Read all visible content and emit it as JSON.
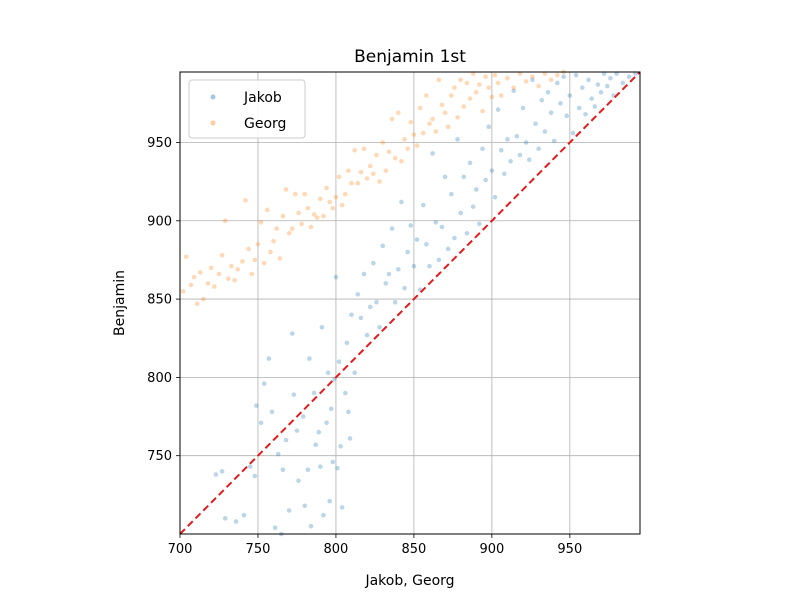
{
  "chart_data": {
    "type": "scatter",
    "title": "Benjamin 1st",
    "xlabel": "Jakob, Georg",
    "ylabel": "Benjamin",
    "xlim": [
      700,
      995
    ],
    "ylim": [
      700,
      995
    ],
    "xticks": [
      700,
      750,
      800,
      850,
      900,
      950
    ],
    "yticks": [
      750,
      800,
      850,
      900,
      950
    ],
    "grid": true,
    "legend_position": "upper-left",
    "reference_line": {
      "from": [
        700,
        700
      ],
      "to": [
        995,
        995
      ],
      "color": "#e31a1c",
      "style": "dashed"
    },
    "series": [
      {
        "name": "Jakob",
        "color": "#1f77b4",
        "points": [
          [
            723,
            738
          ],
          [
            727,
            740
          ],
          [
            729,
            710
          ],
          [
            736,
            708
          ],
          [
            741,
            712
          ],
          [
            745,
            743
          ],
          [
            748,
            737
          ],
          [
            749,
            782
          ],
          [
            752,
            771
          ],
          [
            754,
            796
          ],
          [
            757,
            812
          ],
          [
            759,
            778
          ],
          [
            761,
            704
          ],
          [
            763,
            751
          ],
          [
            765,
            700
          ],
          [
            766,
            741
          ],
          [
            768,
            760
          ],
          [
            770,
            715
          ],
          [
            772,
            828
          ],
          [
            773,
            789
          ],
          [
            775,
            766
          ],
          [
            776,
            734
          ],
          [
            779,
            775
          ],
          [
            780,
            718
          ],
          [
            782,
            741
          ],
          [
            783,
            812
          ],
          [
            784,
            705
          ],
          [
            786,
            790
          ],
          [
            787,
            757
          ],
          [
            789,
            765
          ],
          [
            790,
            743
          ],
          [
            791,
            832
          ],
          [
            792,
            712
          ],
          [
            794,
            771
          ],
          [
            795,
            803
          ],
          [
            796,
            721
          ],
          [
            797,
            780
          ],
          [
            798,
            746
          ],
          [
            799,
            799
          ],
          [
            800,
            864
          ],
          [
            801,
            742
          ],
          [
            802,
            810
          ],
          [
            803,
            756
          ],
          [
            804,
            717
          ],
          [
            806,
            790
          ],
          [
            807,
            822
          ],
          [
            808,
            778
          ],
          [
            809,
            761
          ],
          [
            810,
            840
          ],
          [
            812,
            803
          ],
          [
            814,
            853
          ],
          [
            816,
            838
          ],
          [
            818,
            866
          ],
          [
            820,
            827
          ],
          [
            822,
            845
          ],
          [
            824,
            873
          ],
          [
            826,
            848
          ],
          [
            828,
            832
          ],
          [
            830,
            884
          ],
          [
            832,
            860
          ],
          [
            834,
            866
          ],
          [
            836,
            895
          ],
          [
            838,
            848
          ],
          [
            840,
            869
          ],
          [
            842,
            912
          ],
          [
            844,
            857
          ],
          [
            846,
            880
          ],
          [
            848,
            897
          ],
          [
            850,
            871
          ],
          [
            852,
            888
          ],
          [
            854,
            856
          ],
          [
            856,
            910
          ],
          [
            858,
            885
          ],
          [
            860,
            871
          ],
          [
            862,
            943
          ],
          [
            864,
            899
          ],
          [
            866,
            875
          ],
          [
            868,
            896
          ],
          [
            870,
            928
          ],
          [
            872,
            882
          ],
          [
            874,
            917
          ],
          [
            876,
            889
          ],
          [
            878,
            952
          ],
          [
            880,
            905
          ],
          [
            882,
            928
          ],
          [
            884,
            892
          ],
          [
            886,
            937
          ],
          [
            888,
            909
          ],
          [
            890,
            920
          ],
          [
            892,
            898
          ],
          [
            894,
            946
          ],
          [
            896,
            926
          ],
          [
            898,
            960
          ],
          [
            900,
            932
          ],
          [
            902,
            915
          ],
          [
            904,
            971
          ],
          [
            906,
            945
          ],
          [
            908,
            930
          ],
          [
            910,
            952
          ],
          [
            912,
            938
          ],
          [
            914,
            983
          ],
          [
            916,
            954
          ],
          [
            918,
            942
          ],
          [
            920,
            972
          ],
          [
            922,
            950
          ],
          [
            924,
            939
          ],
          [
            926,
            990
          ],
          [
            928,
            962
          ],
          [
            930,
            946
          ],
          [
            932,
            977
          ],
          [
            934,
            957
          ],
          [
            936,
            982
          ],
          [
            938,
            969
          ],
          [
            940,
            951
          ],
          [
            942,
            988
          ],
          [
            944,
            975
          ],
          [
            946,
            992
          ],
          [
            948,
            967
          ],
          [
            950,
            980
          ],
          [
            952,
            956
          ],
          [
            954,
            993
          ],
          [
            956,
            972
          ],
          [
            958,
            985
          ],
          [
            960,
            968
          ],
          [
            962,
            990
          ],
          [
            964,
            978
          ],
          [
            966,
            973
          ],
          [
            968,
            987
          ],
          [
            970,
            982
          ],
          [
            972,
            994
          ],
          [
            974,
            986
          ],
          [
            976,
            991
          ],
          [
            978,
            980
          ],
          [
            980,
            994
          ],
          [
            984,
            988
          ],
          [
            988,
            992
          ],
          [
            992,
            994
          ]
        ]
      },
      {
        "name": "Georg",
        "color": "#ff7f0e",
        "points": [
          [
            702,
            855
          ],
          [
            704,
            877
          ],
          [
            707,
            859
          ],
          [
            709,
            864
          ],
          [
            711,
            847
          ],
          [
            713,
            867
          ],
          [
            715,
            850
          ],
          [
            718,
            860
          ],
          [
            720,
            870
          ],
          [
            722,
            858
          ],
          [
            725,
            866
          ],
          [
            727,
            878
          ],
          [
            729,
            900
          ],
          [
            731,
            863
          ],
          [
            733,
            871
          ],
          [
            735,
            862
          ],
          [
            737,
            869
          ],
          [
            740,
            874
          ],
          [
            742,
            913
          ],
          [
            744,
            882
          ],
          [
            746,
            866
          ],
          [
            748,
            875
          ],
          [
            750,
            885
          ],
          [
            752,
            899
          ],
          [
            754,
            873
          ],
          [
            756,
            907
          ],
          [
            758,
            880
          ],
          [
            760,
            887
          ],
          [
            762,
            895
          ],
          [
            764,
            876
          ],
          [
            766,
            903
          ],
          [
            768,
            920
          ],
          [
            770,
            892
          ],
          [
            772,
            895
          ],
          [
            774,
            917
          ],
          [
            776,
            905
          ],
          [
            778,
            898
          ],
          [
            780,
            917
          ],
          [
            782,
            908
          ],
          [
            784,
            896
          ],
          [
            786,
            904
          ],
          [
            788,
            902
          ],
          [
            790,
            914
          ],
          [
            792,
            903
          ],
          [
            794,
            921
          ],
          [
            796,
            912
          ],
          [
            798,
            908
          ],
          [
            800,
            915
          ],
          [
            802,
            928
          ],
          [
            804,
            910
          ],
          [
            806,
            917
          ],
          [
            808,
            932
          ],
          [
            810,
            924
          ],
          [
            812,
            945
          ],
          [
            814,
            924
          ],
          [
            816,
            931
          ],
          [
            818,
            946
          ],
          [
            820,
            927
          ],
          [
            822,
            935
          ],
          [
            824,
            930
          ],
          [
            826,
            942
          ],
          [
            828,
            925
          ],
          [
            830,
            950
          ],
          [
            832,
            932
          ],
          [
            834,
            944
          ],
          [
            836,
            965
          ],
          [
            838,
            940
          ],
          [
            840,
            969
          ],
          [
            842,
            938
          ],
          [
            844,
            952
          ],
          [
            846,
            946
          ],
          [
            848,
            963
          ],
          [
            850,
            955
          ],
          [
            852,
            948
          ],
          [
            854,
            972
          ],
          [
            856,
            956
          ],
          [
            858,
            980
          ],
          [
            860,
            962
          ],
          [
            862,
            965
          ],
          [
            864,
            957
          ],
          [
            866,
            990
          ],
          [
            868,
            974
          ],
          [
            870,
            969
          ],
          [
            872,
            960
          ],
          [
            874,
            980
          ],
          [
            876,
            985
          ],
          [
            878,
            966
          ],
          [
            880,
            990
          ],
          [
            882,
            973
          ],
          [
            884,
            988
          ],
          [
            886,
            978
          ],
          [
            888,
            994
          ],
          [
            890,
            982
          ],
          [
            892,
            987
          ],
          [
            894,
            970
          ],
          [
            896,
            992
          ],
          [
            898,
            985
          ],
          [
            900,
            979
          ],
          [
            902,
            993
          ],
          [
            904,
            988
          ],
          [
            906,
            980
          ],
          [
            910,
            991
          ],
          [
            914,
            985
          ],
          [
            918,
            994
          ],
          [
            922,
            989
          ],
          [
            926,
            992
          ],
          [
            930,
            986
          ],
          [
            934,
            994
          ],
          [
            938,
            990
          ],
          [
            942,
            993
          ],
          [
            946,
            995
          ]
        ]
      }
    ]
  }
}
